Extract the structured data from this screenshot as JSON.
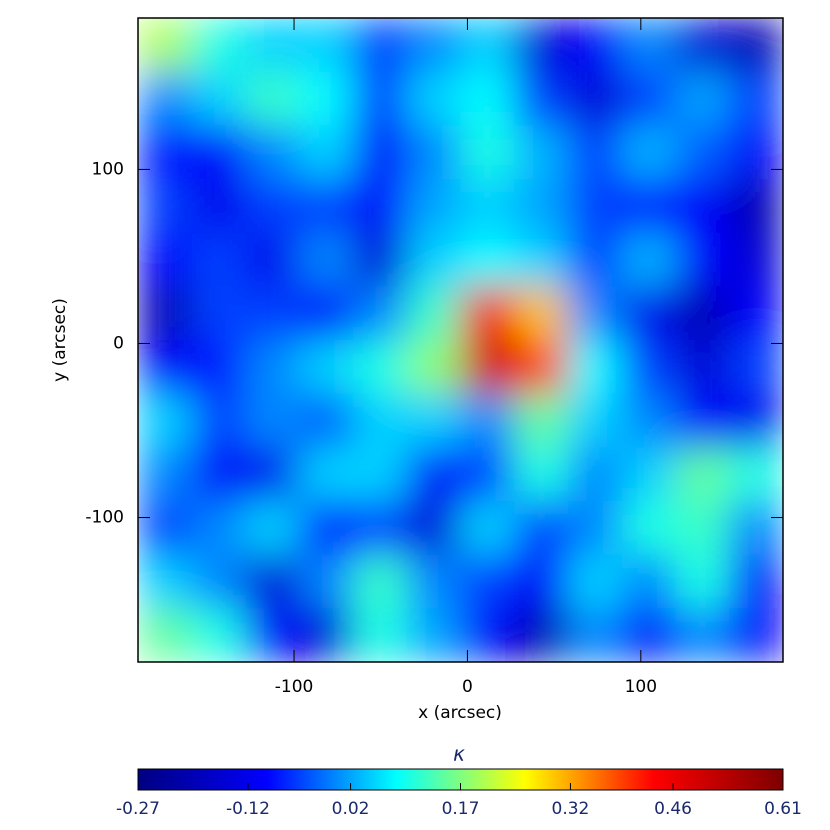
{
  "chart_data": {
    "type": "heatmap",
    "x_label": "x (arcsec)",
    "y_label": "y (arcsec)",
    "xlim": [
      -190,
      182
    ],
    "ylim": [
      -183,
      187
    ],
    "xticks": [
      -100,
      0,
      100
    ],
    "yticks": [
      -100,
      0,
      100
    ],
    "z": [
      [
        0.2,
        0.1,
        0.05,
        0.05,
        -0.05,
        0.0,
        0.05,
        -0.15,
        -0.1,
        0.0,
        -0.15,
        -0.2
      ],
      [
        0.0,
        0.05,
        0.12,
        0.08,
        -0.05,
        0.05,
        0.08,
        -0.05,
        -0.15,
        -0.05,
        0.02,
        -0.05
      ],
      [
        -0.08,
        -0.1,
        0.0,
        0.05,
        -0.1,
        0.0,
        0.1,
        0.03,
        -0.05,
        0.03,
        -0.03,
        -0.1
      ],
      [
        -0.05,
        -0.12,
        -0.05,
        -0.05,
        -0.1,
        0.02,
        0.05,
        0.02,
        -0.05,
        -0.08,
        -0.1,
        -0.2
      ],
      [
        -0.1,
        -0.05,
        -0.12,
        0.0,
        -0.15,
        0.05,
        0.08,
        0.05,
        -0.05,
        0.03,
        -0.1,
        -0.15
      ],
      [
        -0.2,
        -0.05,
        -0.05,
        -0.1,
        0.0,
        0.12,
        0.45,
        0.3,
        0.0,
        -0.12,
        -0.2,
        -0.1
      ],
      [
        -0.1,
        -0.08,
        0.0,
        0.05,
        0.1,
        0.18,
        0.5,
        0.4,
        0.08,
        -0.05,
        -0.15,
        -0.05
      ],
      [
        0.05,
        -0.05,
        0.0,
        -0.03,
        0.05,
        0.05,
        0.0,
        0.15,
        0.05,
        0.0,
        -0.1,
        -0.12
      ],
      [
        0.0,
        -0.1,
        -0.12,
        0.05,
        0.05,
        -0.1,
        -0.05,
        0.1,
        0.0,
        0.05,
        0.15,
        0.1
      ],
      [
        -0.05,
        0.0,
        0.05,
        -0.08,
        -0.05,
        -0.15,
        0.05,
        -0.05,
        0.0,
        0.1,
        0.12,
        0.0
      ],
      [
        0.05,
        0.0,
        -0.15,
        0.0,
        0.12,
        0.0,
        -0.05,
        -0.1,
        0.05,
        0.0,
        0.1,
        -0.1
      ],
      [
        0.15,
        0.1,
        -0.1,
        -0.15,
        0.1,
        0.02,
        -0.1,
        -0.2,
        0.0,
        -0.1,
        0.0,
        -0.1
      ]
    ],
    "colormap": [
      "#00007f",
      "#0000ff",
      "#00ffff",
      "#ffff00",
      "#ff0000",
      "#7f0000"
    ],
    "colorbar": {
      "label": "κ",
      "lim": [
        -0.27,
        0.61
      ],
      "ticks": [
        -0.27,
        -0.12,
        0.02,
        0.17,
        0.32,
        0.46,
        0.61
      ]
    }
  }
}
